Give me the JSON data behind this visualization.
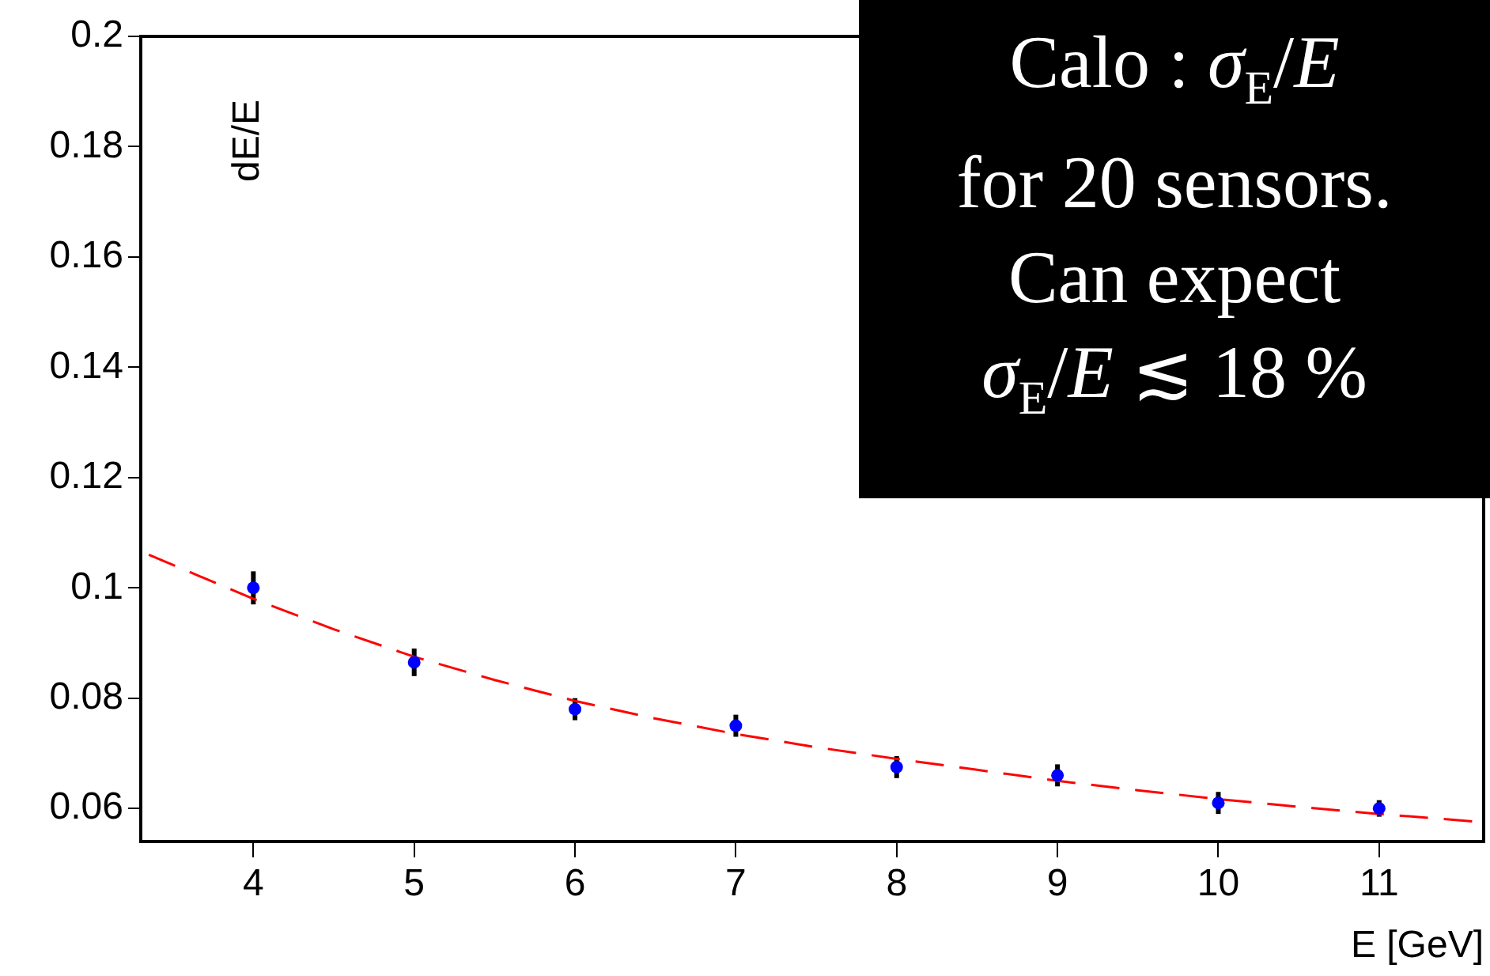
{
  "chart_data": {
    "type": "scatter",
    "xlabel": "E [GeV]",
    "ylabel": "dE/E",
    "xlim": [
      3.3,
      11.65
    ],
    "xticks": [
      4,
      5,
      6,
      7,
      8,
      9,
      10,
      11
    ],
    "ylim": [
      0.054,
      0.2
    ],
    "yticks": [
      0.06,
      0.08,
      0.1,
      0.12,
      0.14,
      0.16,
      0.18,
      0.2
    ],
    "grid": false,
    "legend": false,
    "series": [
      {
        "color": "#0000ff",
        "marker": "circle",
        "x": [
          4,
          5,
          6,
          7,
          8,
          9,
          10,
          11
        ],
        "values": [
          0.1,
          0.0865,
          0.078,
          0.075,
          0.0675,
          0.066,
          0.061,
          0.06
        ],
        "errors": [
          0.003,
          0.0025,
          0.002,
          0.002,
          0.002,
          0.002,
          0.002,
          0.0015
        ]
      },
      {
        "type": "line",
        "color": "#ff0000",
        "line_style": "dashed",
        "marker": "none",
        "x": [
          3.35,
          4,
          4.5,
          5,
          5.5,
          6,
          6.5,
          7,
          7.5,
          8,
          8.5,
          9,
          9.5,
          10,
          10.5,
          11,
          11.65
        ],
        "values": [
          0.106,
          0.098,
          0.0925,
          0.0875,
          0.0833,
          0.0795,
          0.0763,
          0.0735,
          0.0711,
          0.069,
          0.067,
          0.065,
          0.0633,
          0.0617,
          0.0603,
          0.059,
          0.0575
        ]
      }
    ],
    "annotations": [
      "Calo : σ$_{E}$/E",
      "for 20 sensors.",
      "Can expect",
      "σ$_{E}$/E ≲ 18 %"
    ]
  }
}
